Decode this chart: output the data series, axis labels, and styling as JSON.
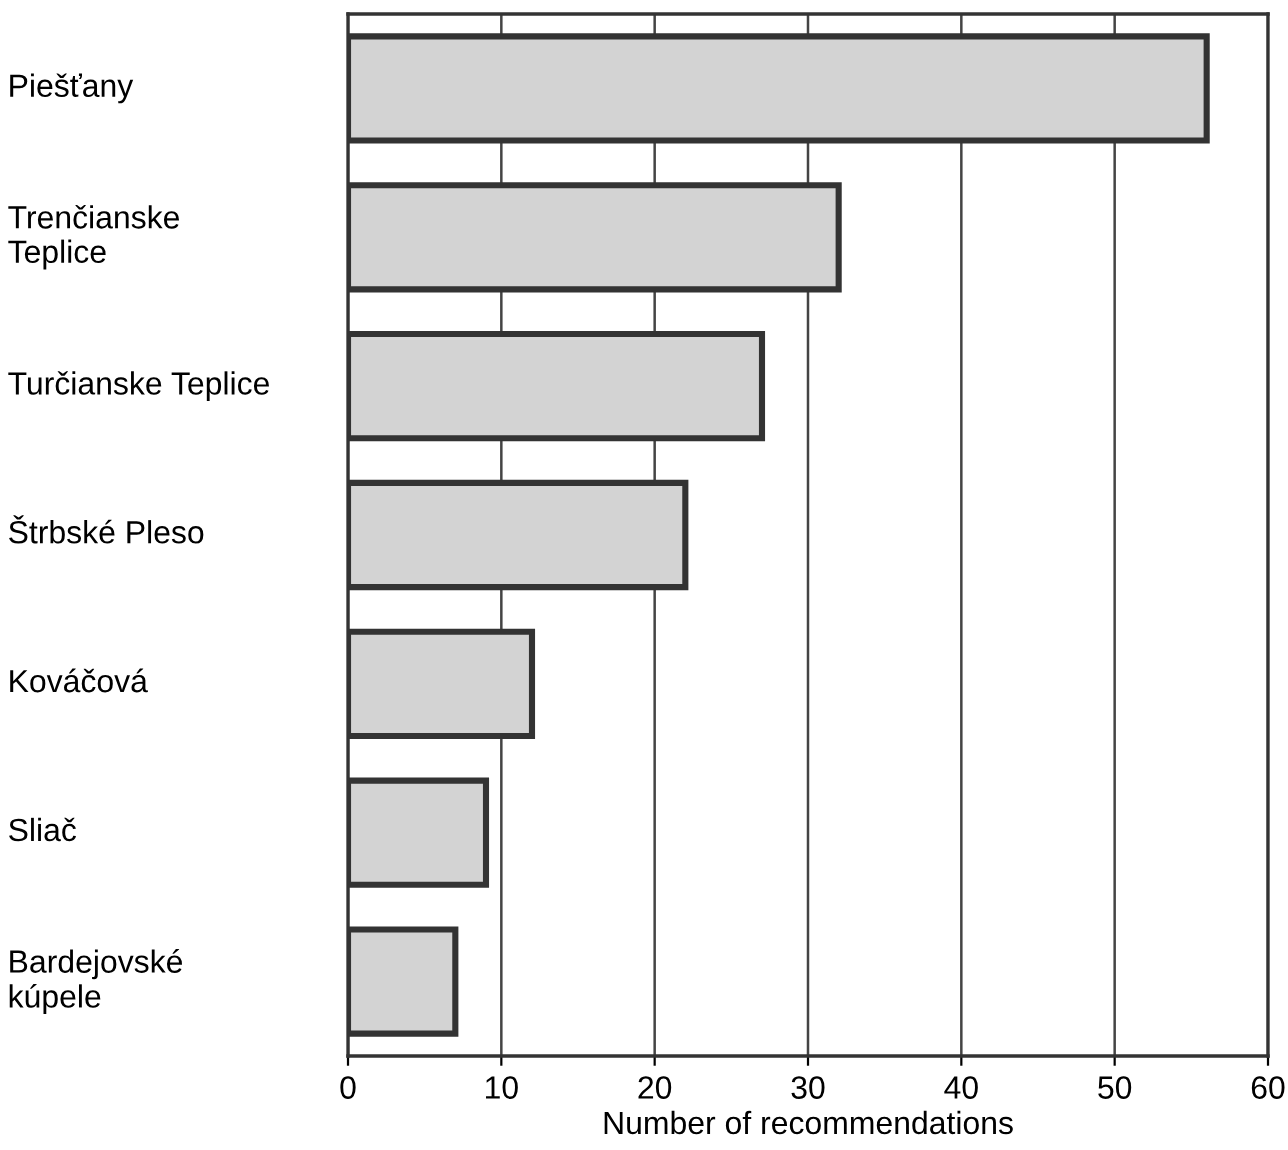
{
  "chart_data": {
    "type": "bar",
    "orientation": "horizontal",
    "xlabel": "Number of recommendations",
    "categories": [
      "Piešťany",
      "Trenčianske\nTeplice",
      "Turčianske Teplice",
      "Štrbské Pleso",
      "Kováčová",
      "Sliač",
      "Bardejovské\nkúpele"
    ],
    "values": [
      56,
      32,
      27,
      22,
      12,
      9,
      7
    ],
    "color": "#d3d3d3",
    "xlim": [
      0,
      60
    ],
    "xticks": [
      0,
      10,
      20,
      30,
      40,
      50,
      60
    ],
    "grid": "x"
  }
}
